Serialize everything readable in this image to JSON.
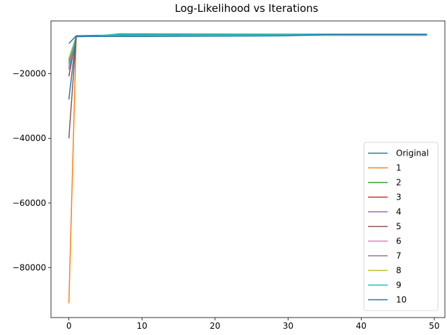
{
  "chart_data": {
    "type": "line",
    "title": "Log-Likelihood vs Iterations",
    "xlabel": "",
    "ylabel": "",
    "xlim": [
      -2.45,
      51.45
    ],
    "ylim": [
      -95400,
      -3700
    ],
    "xticks": [
      0,
      10,
      20,
      30,
      40,
      50
    ],
    "yticks": [
      -20000,
      -40000,
      -60000,
      -80000
    ],
    "ytick_labels": [
      "−20000",
      "−40000",
      "−60000",
      "−80000"
    ],
    "grid": false,
    "legend_position": "lower right",
    "series": [
      {
        "name": "Original",
        "color": "#1f77b4",
        "x": [
          0,
          1,
          4,
          8,
          15,
          25,
          35,
          49
        ],
        "values": [
          -10700,
          -8300,
          -8150,
          -8100,
          -8050,
          -8000,
          -7950,
          -7900
        ]
      },
      {
        "name": "1",
        "color": "#ff7f0e",
        "x": [
          0,
          1,
          5,
          10,
          20,
          30,
          40,
          49
        ],
        "values": [
          -91000,
          -8600,
          -8400,
          -8300,
          -8200,
          -8150,
          -8100,
          -8100
        ]
      },
      {
        "name": "2",
        "color": "#2ca02c",
        "x": [
          0,
          1,
          4,
          6,
          7,
          10,
          20,
          30,
          40,
          49
        ],
        "values": [
          -16800,
          -8500,
          -8300,
          -7900,
          -7700,
          -7700,
          -7750,
          -7800,
          -7800,
          -7800
        ]
      },
      {
        "name": "3",
        "color": "#d62728",
        "x": [
          0,
          1,
          5,
          10,
          20,
          30,
          40,
          49
        ],
        "values": [
          -20800,
          -8500,
          -8400,
          -8300,
          -8200,
          -8150,
          -8100,
          -8100
        ]
      },
      {
        "name": "4",
        "color": "#9467bd",
        "x": [
          0,
          1,
          5,
          10,
          20,
          30,
          40,
          49
        ],
        "values": [
          -18700,
          -8500,
          -8400,
          -8300,
          -8200,
          -8150,
          -8100,
          -8100
        ]
      },
      {
        "name": "5",
        "color": "#8c564b",
        "x": [
          0,
          1,
          5,
          10,
          20,
          30,
          40,
          49
        ],
        "values": [
          -40000,
          -8500,
          -8400,
          -8300,
          -8200,
          -8150,
          -8100,
          -8100
        ]
      },
      {
        "name": "6",
        "color": "#e377c2",
        "x": [
          0,
          1,
          5,
          10,
          20,
          30,
          40,
          49
        ],
        "values": [
          -17700,
          -8500,
          -8400,
          -8300,
          -8200,
          -8150,
          -8100,
          -8100
        ]
      },
      {
        "name": "7",
        "color": "#7f7f7f",
        "x": [
          0,
          1,
          5,
          10,
          20,
          30,
          40,
          49
        ],
        "values": [
          -16000,
          -8500,
          -8400,
          -8300,
          -8200,
          -8150,
          -8100,
          -8100
        ]
      },
      {
        "name": "8",
        "color": "#bcbd22",
        "x": [
          0,
          1,
          5,
          10,
          20,
          30,
          40,
          49
        ],
        "values": [
          -15300,
          -8500,
          -8400,
          -8300,
          -8200,
          -8150,
          -8100,
          -8100
        ]
      },
      {
        "name": "9",
        "color": "#17becf",
        "x": [
          0,
          1,
          4,
          6,
          8,
          10,
          20,
          30,
          40,
          49
        ],
        "values": [
          -18600,
          -8500,
          -8300,
          -8000,
          -7800,
          -7800,
          -7800,
          -7800,
          -7800,
          -7800
        ]
      },
      {
        "name": "10",
        "color": "#1f77b4",
        "x": [
          0,
          1,
          5,
          10,
          20,
          30,
          35,
          40,
          49
        ],
        "values": [
          -28000,
          -8500,
          -8500,
          -8500,
          -8400,
          -8300,
          -7900,
          -7900,
          -7900
        ]
      }
    ]
  }
}
